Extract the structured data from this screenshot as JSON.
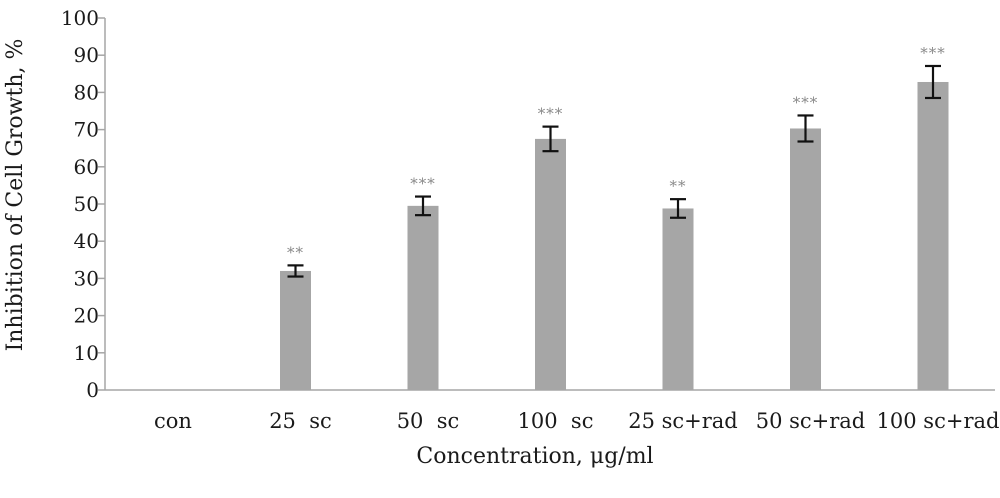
{
  "chart_data": {
    "type": "bar",
    "title": "",
    "xlabel": "Concentration, μg/ml",
    "ylabel": "Inhibition of Cell Growth, %",
    "ylim": [
      0,
      100
    ],
    "yticks": [
      0,
      10,
      20,
      30,
      40,
      50,
      60,
      70,
      80,
      90,
      100
    ],
    "grid": false,
    "legend": "none",
    "bar_color": "#a6a6a6",
    "categories": [
      "con",
      "25  sc",
      "50  sc",
      "100  sc",
      "25 sc+rad",
      "50 sc+rad",
      "100 sc+rad"
    ],
    "values": [
      0,
      32,
      49.5,
      67.5,
      48.8,
      70.3,
      82.8
    ],
    "error": [
      0,
      1.5,
      2.5,
      3.3,
      2.5,
      3.5,
      4.3
    ],
    "significance": [
      "",
      "**",
      "***",
      "***",
      "**",
      "***",
      "***"
    ]
  }
}
